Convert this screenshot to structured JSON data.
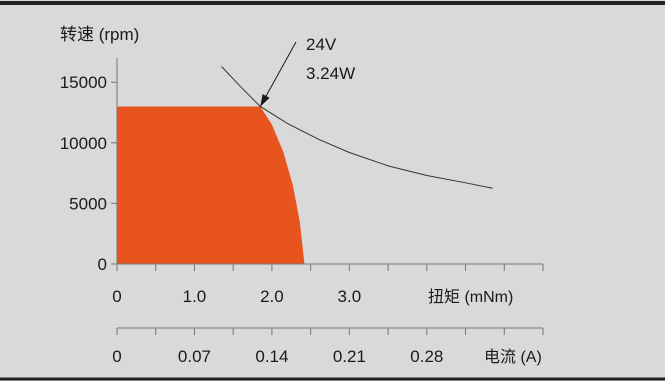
{
  "colors": {
    "background": "#d9d9d9",
    "border": "#222222",
    "operating_region_fill": "#e8541e",
    "curve": "#333333",
    "axis": "#777777",
    "text": "#1a1a1a"
  },
  "chart_data": {
    "type": "area",
    "title": "",
    "ylabel": "转速 (rpm)",
    "xlabel": "扭矩 (mNm)",
    "secondary_xlabel": "电流 (A)",
    "ylim": [
      0,
      17000
    ],
    "xlim": [
      0,
      5.5
    ],
    "secondary_xlim": [
      0,
      0.385
    ],
    "y_ticks": [
      0,
      5000,
      10000,
      15000
    ],
    "y_tick_labels": [
      "0",
      "5000",
      "10000",
      "15000"
    ],
    "x_ticks": [
      0,
      0.5,
      1.0,
      1.5,
      2.0,
      2.5,
      3.0,
      3.5,
      4.0,
      4.5,
      5.0,
      5.5
    ],
    "x_tick_labels": [
      {
        "value": 0,
        "label": "0"
      },
      {
        "value": 1.0,
        "label": "1.0"
      },
      {
        "value": 2.0,
        "label": "2.0"
      },
      {
        "value": 3.0,
        "label": "3.0"
      }
    ],
    "secondary_x_ticks": [
      0,
      0.035,
      0.07,
      0.105,
      0.14,
      0.175,
      0.21,
      0.245,
      0.28,
      0.315,
      0.35,
      0.385
    ],
    "secondary_x_tick_labels": [
      {
        "value": 0,
        "label": "0"
      },
      {
        "value": 0.07,
        "label": "0.07"
      },
      {
        "value": 0.14,
        "label": "0.14"
      },
      {
        "value": 0.21,
        "label": "0.21"
      },
      {
        "value": 0.28,
        "label": "0.28"
      }
    ],
    "series": [
      {
        "kind": "region",
        "points": [
          [
            0,
            0
          ],
          [
            0,
            13000
          ],
          [
            1.85,
            13000
          ],
          [
            2.0,
            11500
          ],
          [
            2.15,
            9200
          ],
          [
            2.27,
            6500
          ],
          [
            2.36,
            3500
          ],
          [
            2.42,
            0
          ]
        ]
      },
      {
        "kind": "line",
        "points": [
          [
            1.35,
            16300
          ],
          [
            1.6,
            14600
          ],
          [
            1.85,
            13000
          ],
          [
            2.2,
            11600
          ],
          [
            2.6,
            10300
          ],
          [
            3.0,
            9200
          ],
          [
            3.5,
            8100
          ],
          [
            4.0,
            7300
          ],
          [
            4.5,
            6700
          ],
          [
            4.85,
            6250
          ]
        ]
      }
    ],
    "annotations": [
      {
        "lines": [
          "24V",
          "3.24W"
        ],
        "arrow_to": [
          1.85,
          13000
        ]
      }
    ],
    "grid": false,
    "legend": "none"
  }
}
